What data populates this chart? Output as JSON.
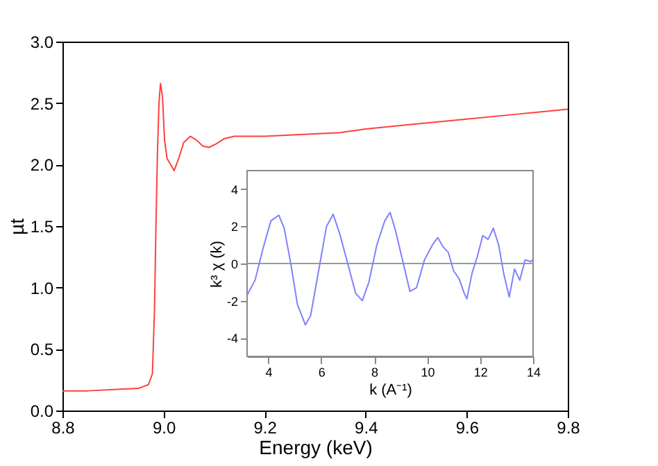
{
  "chart_data": [
    {
      "type": "line",
      "xlabel": "Energy (keV)",
      "ylabel": "µt",
      "xlim": [
        8.8,
        9.8
      ],
      "ylim": [
        0,
        3
      ],
      "xticks": [
        8.8,
        {
          "value": 9,
          "label": "9.0"
        },
        9.2,
        9.4,
        9.6,
        9.8
      ],
      "yticks": [
        {
          "value": 0,
          "label": "0.0"
        },
        0.5,
        {
          "value": 1,
          "label": "1.0"
        },
        1.5,
        {
          "value": 2,
          "label": "2.0"
        },
        2.5,
        {
          "value": 3,
          "label": "3.0"
        }
      ],
      "grid": false,
      "series": [
        {
          "color": "#ff4040",
          "x": [
            8.8,
            8.85,
            8.9,
            8.95,
            8.97,
            8.978,
            8.982,
            8.985,
            8.988,
            8.991,
            8.994,
            8.998,
            9.002,
            9.007,
            9.014,
            9.021,
            9.03,
            9.04,
            9.053,
            9.065,
            9.078,
            9.09,
            9.105,
            9.12,
            9.14,
            9.17,
            9.2,
            9.25,
            9.3,
            9.35,
            9.4,
            9.5,
            9.6,
            9.7,
            9.8
          ],
          "values": [
            0.16,
            0.16,
            0.17,
            0.18,
            0.21,
            0.3,
            0.8,
            1.5,
            2.1,
            2.5,
            2.66,
            2.55,
            2.2,
            2.05,
            2.0,
            1.95,
            2.05,
            2.18,
            2.23,
            2.2,
            2.15,
            2.14,
            2.17,
            2.21,
            2.23,
            2.23,
            2.23,
            2.24,
            2.25,
            2.26,
            2.29,
            2.33,
            2.37,
            2.41,
            2.45
          ]
        }
      ]
    },
    {
      "type": "line",
      "xlabel": "k (A⁻¹)",
      "ylabel": "k³ χ (k)",
      "xlim": [
        3.2,
        14
      ],
      "ylim": [
        -5,
        5
      ],
      "xticks": [
        4,
        6,
        8,
        10,
        12,
        14
      ],
      "yticks": [
        -4,
        -2,
        0,
        2,
        4
      ],
      "grid": false,
      "ref_lines": [
        {
          "axis": "y",
          "value": 0,
          "color": "#999999"
        }
      ],
      "series": [
        {
          "color": "#8080ff",
          "x": [
            3.2,
            3.5,
            3.8,
            4.1,
            4.4,
            4.6,
            4.85,
            5.1,
            5.4,
            5.6,
            5.95,
            6.2,
            6.45,
            6.7,
            7.0,
            7.3,
            7.55,
            7.8,
            8.1,
            8.4,
            8.6,
            8.8,
            9.1,
            9.35,
            9.6,
            9.9,
            10.2,
            10.4,
            10.6,
            10.8,
            11.0,
            11.2,
            11.4,
            11.5,
            11.7,
            11.9,
            12.1,
            12.3,
            12.5,
            12.7,
            12.9,
            13.1,
            13.3,
            13.5,
            13.7,
            13.9,
            14.0
          ],
          "values": [
            -1.7,
            -0.9,
            0.8,
            2.3,
            2.6,
            1.9,
            0,
            -2.2,
            -3.3,
            -2.8,
            0,
            2.0,
            2.65,
            1.6,
            0,
            -1.6,
            -2.0,
            -1.0,
            1.0,
            2.3,
            2.75,
            1.8,
            0,
            -1.5,
            -1.3,
            0.2,
            1.0,
            1.4,
            0.9,
            0.6,
            -0.4,
            -0.8,
            -1.6,
            -1.9,
            -0.5,
            0.4,
            1.5,
            1.3,
            1.9,
            1.0,
            -0.6,
            -1.8,
            -0.3,
            -0.9,
            0.2,
            0.1,
            0.2
          ]
        }
      ]
    }
  ]
}
